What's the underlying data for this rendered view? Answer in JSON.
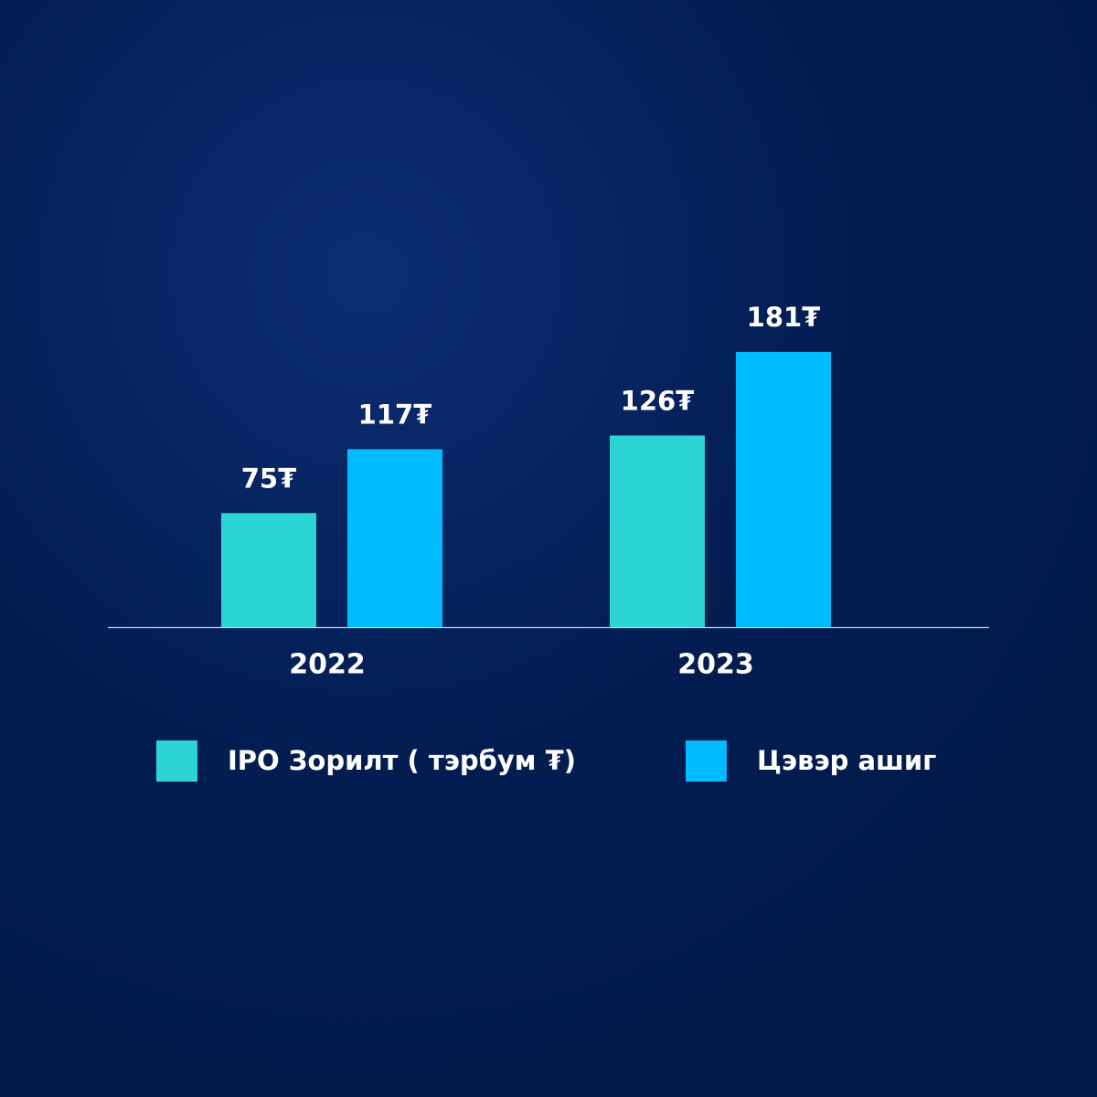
{
  "chart_data": {
    "type": "bar",
    "categories": [
      "2022",
      "2023"
    ],
    "series": [
      {
        "name": "IPO Зорилт ( тэрбум ₮)",
        "color": "#2dd4d4",
        "values": [
          75,
          126
        ],
        "value_labels": [
          "75₮",
          "126₮"
        ]
      },
      {
        "name": "Цэвэр ашиг",
        "color": "#00bbff",
        "values": [
          117,
          181
        ],
        "value_labels": [
          "117₮",
          "181₮"
        ]
      }
    ],
    "legend": "bottom"
  }
}
